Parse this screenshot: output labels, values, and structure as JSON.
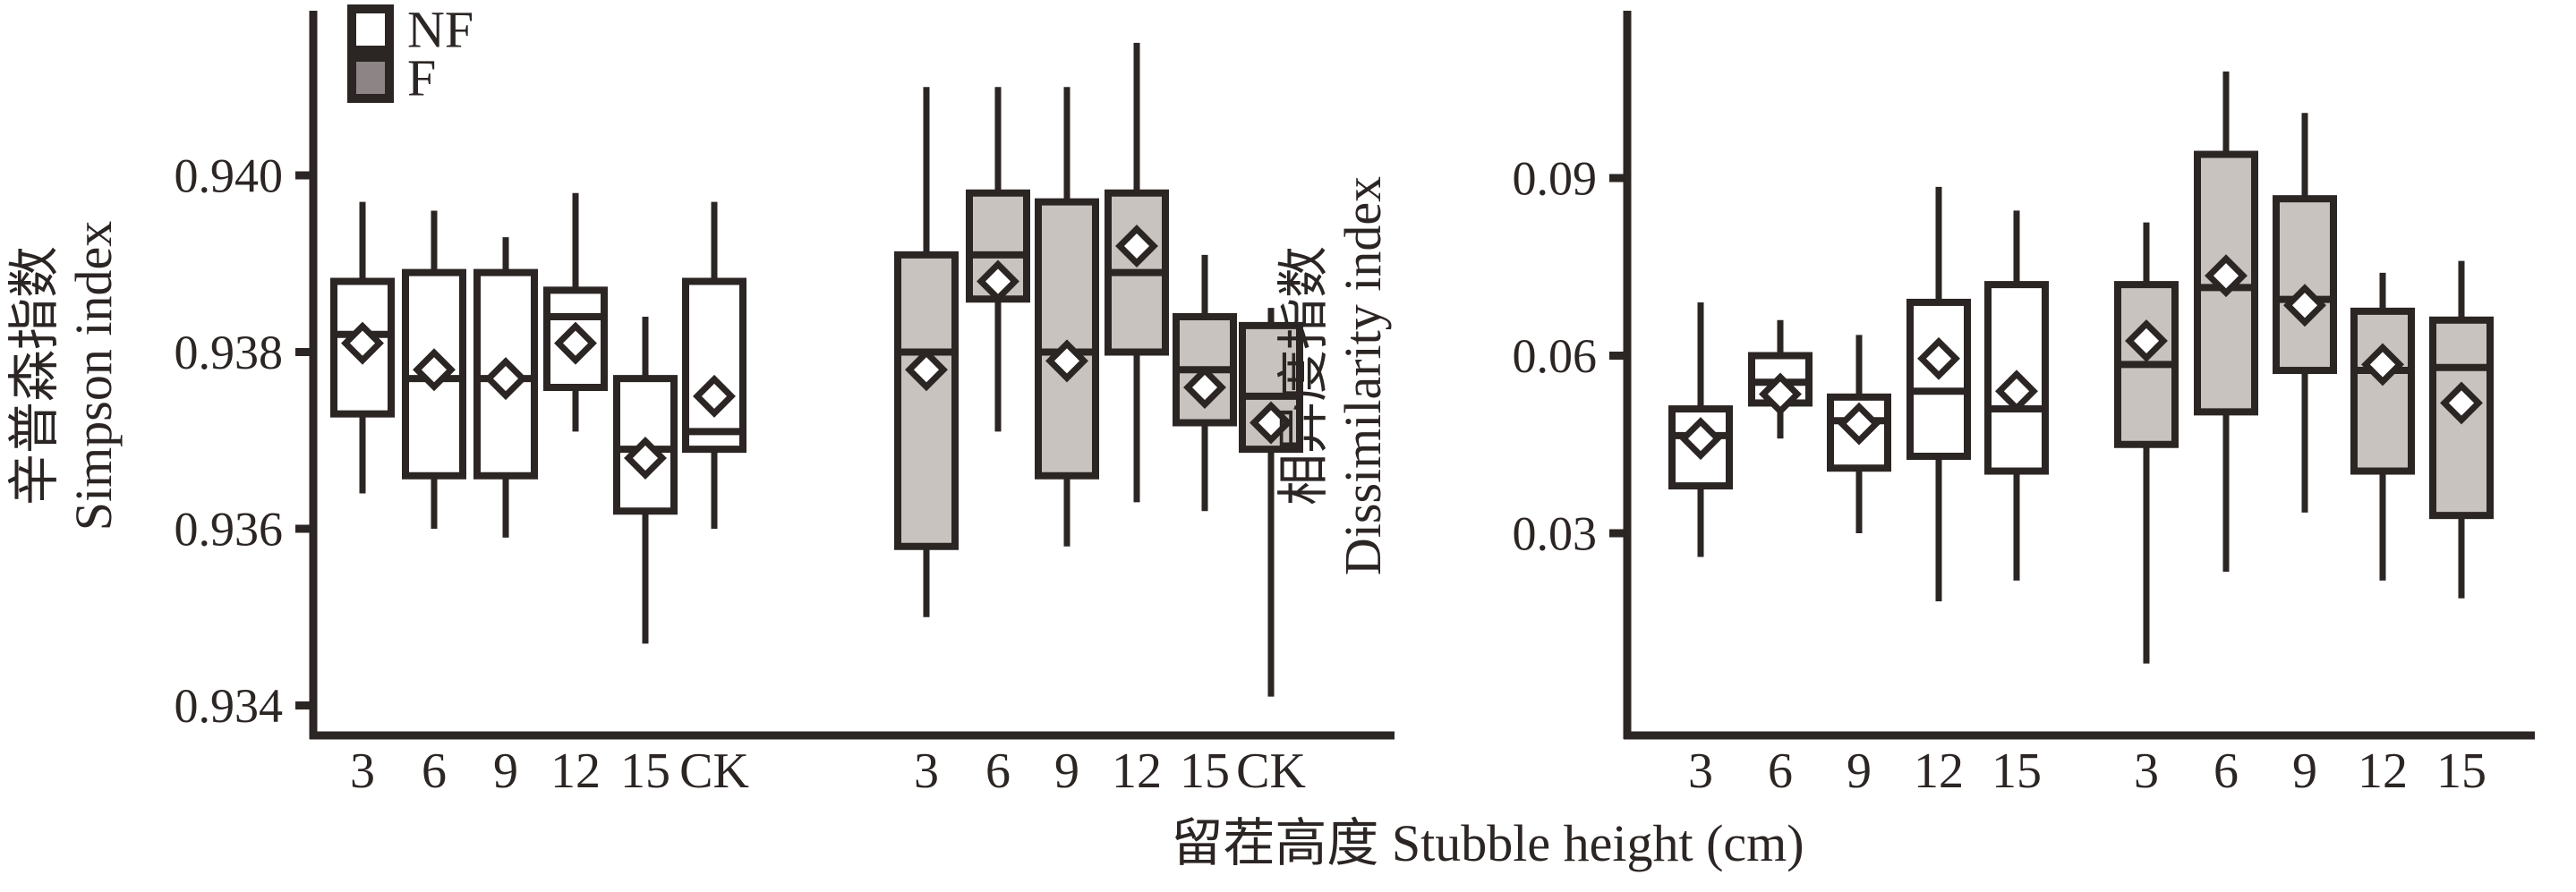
{
  "figure": {
    "background": "#ffffff",
    "line_color": "#2b2523",
    "box_fill_f": "#c9c3bf",
    "box_fill_nf": "#ffffff",
    "diamond_fill": "#ffffff",
    "legend_f_fill": "#8d8486"
  },
  "legend": {
    "items": [
      {
        "label": "NF",
        "fill": "#ffffff"
      },
      {
        "label": "F",
        "fill": "#8d8486"
      }
    ]
  },
  "xaxis_title": "留茬高度 Stubble height (cm)",
  "chart_data": [
    {
      "type": "box",
      "title": "",
      "ylabel_cn": "辛普森指数",
      "ylabel_en": "Simpson index",
      "ytick_labels": [
        "0.940",
        "0.938",
        "0.936",
        "0.934"
      ],
      "ytick_values": [
        0.94,
        0.938,
        0.936,
        0.934
      ],
      "ylim": [
        0.9336,
        0.9419
      ],
      "categories": [
        "3",
        "6",
        "9",
        "12",
        "15",
        "CK"
      ],
      "legend_position": "top-left-inside",
      "grid": false,
      "series": [
        {
          "name": "NF",
          "boxes": [
            {
              "category": "3",
              "whisker_low": 0.9364,
              "q1": 0.9373,
              "median": 0.9382,
              "q3": 0.9388,
              "whisker_high": 0.9397,
              "mean": 0.9381
            },
            {
              "category": "6",
              "whisker_low": 0.936,
              "q1": 0.9366,
              "median": 0.9377,
              "q3": 0.9389,
              "whisker_high": 0.9396,
              "mean": 0.9378
            },
            {
              "category": "9",
              "whisker_low": 0.9359,
              "q1": 0.9366,
              "median": 0.9377,
              "q3": 0.9389,
              "whisker_high": 0.9393,
              "mean": 0.9377
            },
            {
              "category": "12",
              "whisker_low": 0.9371,
              "q1": 0.9376,
              "median": 0.9384,
              "q3": 0.9387,
              "whisker_high": 0.9398,
              "mean": 0.9381
            },
            {
              "category": "15",
              "whisker_low": 0.9347,
              "q1": 0.9362,
              "median": 0.9369,
              "q3": 0.9377,
              "whisker_high": 0.9384,
              "mean": 0.9368
            },
            {
              "category": "CK",
              "whisker_low": 0.936,
              "q1": 0.9369,
              "median": 0.9371,
              "q3": 0.9388,
              "whisker_high": 0.9397,
              "mean": 0.9375
            }
          ]
        },
        {
          "name": "F",
          "boxes": [
            {
              "category": "3",
              "whisker_low": 0.935,
              "q1": 0.9358,
              "median": 0.938,
              "q3": 0.9391,
              "whisker_high": 0.941,
              "mean": 0.9378
            },
            {
              "category": "6",
              "whisker_low": 0.9371,
              "q1": 0.9386,
              "median": 0.9391,
              "q3": 0.9398,
              "whisker_high": 0.941,
              "mean": 0.9388
            },
            {
              "category": "9",
              "whisker_low": 0.9358,
              "q1": 0.9366,
              "median": 0.938,
              "q3": 0.9397,
              "whisker_high": 0.941,
              "mean": 0.9379
            },
            {
              "category": "12",
              "whisker_low": 0.9363,
              "q1": 0.938,
              "median": 0.9389,
              "q3": 0.9398,
              "whisker_high": 0.9415,
              "mean": 0.9392
            },
            {
              "category": "15",
              "whisker_low": 0.9362,
              "q1": 0.9372,
              "median": 0.9378,
              "q3": 0.9384,
              "whisker_high": 0.9391,
              "mean": 0.9376
            },
            {
              "category": "CK",
              "whisker_low": 0.9341,
              "q1": 0.9369,
              "median": 0.9375,
              "q3": 0.9383,
              "whisker_high": 0.9385,
              "mean": 0.9372
            }
          ]
        }
      ]
    },
    {
      "type": "box",
      "title": "",
      "ylabel_cn": "相异度指数",
      "ylabel_en": "Dissimilarity index",
      "ytick_labels": [
        "0.09",
        "0.06",
        "0.03"
      ],
      "ytick_values": [
        0.09,
        0.06,
        0.03
      ],
      "ylim": [
        -0.004,
        0.118
      ],
      "categories": [
        "3",
        "6",
        "9",
        "12",
        "15"
      ],
      "grid": false,
      "series": [
        {
          "name": "NF",
          "boxes": [
            {
              "category": "3",
              "whisker_low": 0.026,
              "q1": 0.038,
              "median": 0.0465,
              "q3": 0.051,
              "whisker_high": 0.069,
              "mean": 0.046
            },
            {
              "category": "6",
              "whisker_low": 0.046,
              "q1": 0.052,
              "median": 0.0555,
              "q3": 0.06,
              "whisker_high": 0.066,
              "mean": 0.0535
            },
            {
              "category": "9",
              "whisker_low": 0.03,
              "q1": 0.041,
              "median": 0.049,
              "q3": 0.053,
              "whisker_high": 0.0635,
              "mean": 0.0485
            },
            {
              "category": "12",
              "whisker_low": 0.0185,
              "q1": 0.043,
              "median": 0.054,
              "q3": 0.069,
              "whisker_high": 0.0885,
              "mean": 0.0595
            },
            {
              "category": "15",
              "whisker_low": 0.022,
              "q1": 0.0405,
              "median": 0.051,
              "q3": 0.072,
              "whisker_high": 0.0845,
              "mean": 0.054
            }
          ]
        },
        {
          "name": "F",
          "boxes": [
            {
              "category": "3",
              "whisker_low": 0.008,
              "q1": 0.045,
              "median": 0.0585,
              "q3": 0.072,
              "whisker_high": 0.0825,
              "mean": 0.0625
            },
            {
              "category": "6",
              "whisker_low": 0.0235,
              "q1": 0.0505,
              "median": 0.0715,
              "q3": 0.094,
              "whisker_high": 0.108,
              "mean": 0.0735
            },
            {
              "category": "9",
              "whisker_low": 0.0335,
              "q1": 0.0575,
              "median": 0.0695,
              "q3": 0.0865,
              "whisker_high": 0.101,
              "mean": 0.0685
            },
            {
              "category": "12",
              "whisker_low": 0.022,
              "q1": 0.0405,
              "median": 0.0575,
              "q3": 0.0675,
              "whisker_high": 0.074,
              "mean": 0.0585
            },
            {
              "category": "15",
              "whisker_low": 0.019,
              "q1": 0.033,
              "median": 0.058,
              "q3": 0.066,
              "whisker_high": 0.076,
              "mean": 0.052
            }
          ]
        }
      ]
    }
  ]
}
